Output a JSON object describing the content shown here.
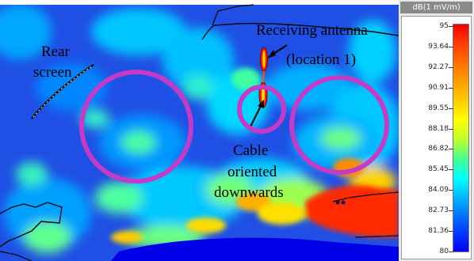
{
  "annotations": {
    "rear_screen_line1": "Rear",
    "rear_screen_line2": "screen",
    "receiving_antenna_line1": "Receiving antenna",
    "receiving_antenna_line2": "(location 1)",
    "cable_line1": "Cable",
    "cable_line2": "oriented",
    "cable_line3": "downwards"
  },
  "color_scale": {
    "unit": "dB(1 mV/m)",
    "ticks": [
      "95",
      "93.64",
      "92.27",
      "90.91",
      "89.55",
      "88.18",
      "86.82",
      "85.45",
      "84.09",
      "82.73",
      "81.36",
      "80"
    ]
  },
  "colors": {
    "highlight_circles": "#c63ac8",
    "background_field": "#1e4fe6",
    "hotspot": "#ff1a00"
  }
}
